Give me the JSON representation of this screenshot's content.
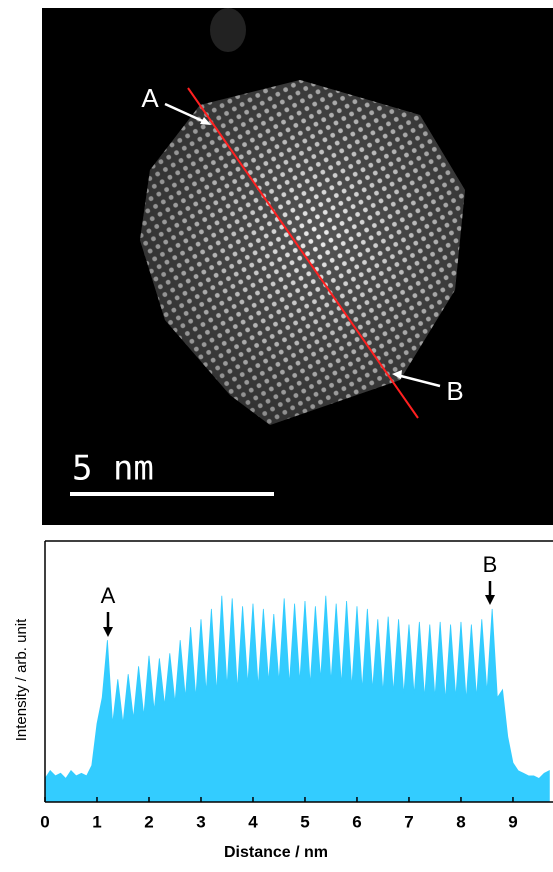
{
  "image": {
    "label_a": "A",
    "label_b": "B",
    "scale_bar": "5 nm"
  },
  "chart_data": {
    "type": "area",
    "x_label": "Distance / nm",
    "y_label": "Intensity / arb. unit",
    "annotations": [
      "A",
      "B"
    ],
    "color": "#33ccff",
    "x": [
      0,
      0.1,
      0.2,
      0.3,
      0.4,
      0.5,
      0.6,
      0.7,
      0.8,
      0.9,
      1,
      1.1,
      1.2,
      1.3,
      1.4,
      1.5,
      1.6,
      1.7,
      1.8,
      1.9,
      2,
      2.1,
      2.2,
      2.3,
      2.4,
      2.5,
      2.6,
      2.7,
      2.8,
      2.9,
      3,
      3.1,
      3.2,
      3.3,
      3.4,
      3.5,
      3.6,
      3.7,
      3.8,
      3.9,
      4,
      4.1,
      4.2,
      4.3,
      4.4,
      4.5,
      4.6,
      4.7,
      4.8,
      4.9,
      5,
      5.1,
      5.2,
      5.3,
      5.4,
      5.5,
      5.6,
      5.7,
      5.8,
      5.9,
      6,
      6.1,
      6.2,
      6.3,
      6.4,
      6.5,
      6.6,
      6.7,
      6.8,
      6.9,
      7,
      7.1,
      7.2,
      7.3,
      7.4,
      7.5,
      7.6,
      7.7,
      7.8,
      7.9,
      8,
      8.1,
      8.2,
      8.3,
      8.4,
      8.5,
      8.6,
      8.7,
      8.8,
      8.9,
      9,
      9.1,
      9.2,
      9.3,
      9.4,
      9.5,
      9.6,
      9.7
    ],
    "values": [
      9,
      12,
      10,
      11,
      9,
      12,
      10,
      11,
      10,
      14,
      30,
      40,
      62,
      30,
      47,
      30,
      49,
      32,
      52,
      33,
      56,
      35,
      55,
      37,
      57,
      38,
      62,
      40,
      67,
      40,
      70,
      42,
      74,
      42,
      79,
      44,
      78,
      43,
      75,
      45,
      76,
      44,
      74,
      46,
      72,
      46,
      78,
      45,
      76,
      46,
      77,
      45,
      75,
      47,
      79,
      46,
      76,
      45,
      77,
      44,
      75,
      43,
      74,
      43,
      70,
      42,
      71,
      42,
      70,
      41,
      68,
      41,
      69,
      40,
      68,
      40,
      69,
      39,
      68,
      40,
      69,
      39,
      68,
      40,
      70,
      42,
      74,
      40,
      43,
      25,
      15,
      12,
      11,
      10,
      10,
      9,
      11,
      12
    ],
    "xlim": [
      0,
      9.77
    ],
    "ylim": [
      0,
      100
    ],
    "xticks": [
      0,
      1,
      2,
      3,
      4,
      5,
      6,
      7,
      8,
      9
    ]
  }
}
